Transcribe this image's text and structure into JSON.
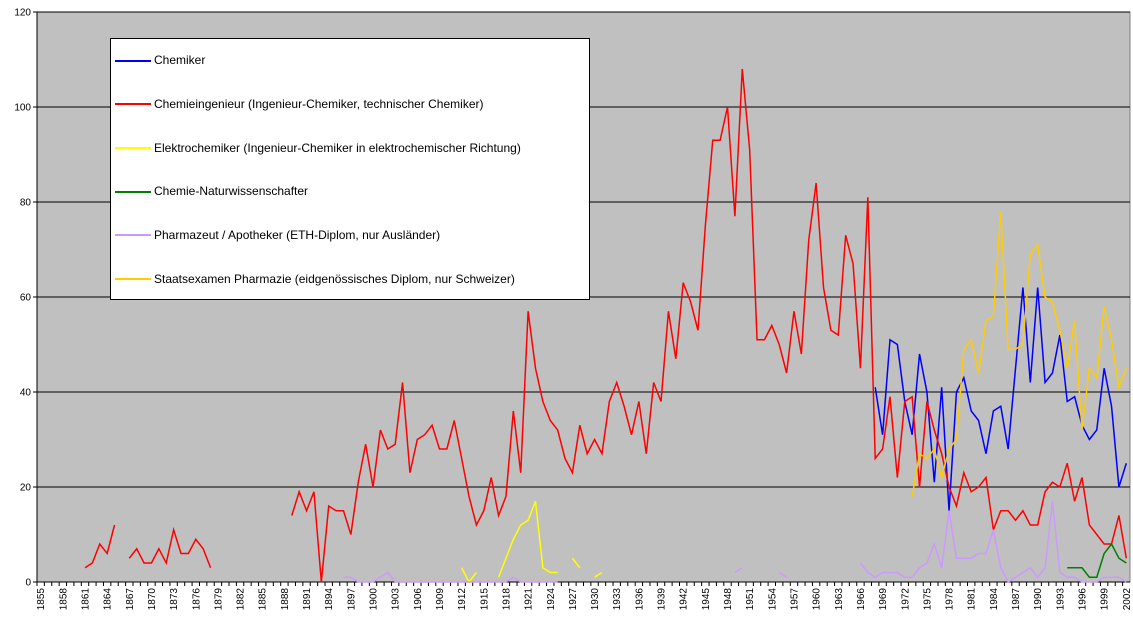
{
  "chart_data": {
    "type": "line",
    "categories": [
      "1855",
      null,
      null,
      "1858",
      null,
      null,
      "1861",
      null,
      null,
      "1864",
      null,
      null,
      "1867",
      null,
      null,
      "1870",
      null,
      null,
      "1873",
      null,
      null,
      "1876",
      null,
      null,
      "1879",
      null,
      null,
      "1882",
      null,
      null,
      "1885",
      null,
      null,
      "1888",
      null,
      null,
      "1891",
      null,
      null,
      "1894",
      null,
      null,
      "1897",
      null,
      null,
      "1900",
      null,
      null,
      "1903",
      null,
      null,
      "1906",
      null,
      null,
      "1909",
      null,
      null,
      "1912",
      null,
      null,
      "1915",
      null,
      null,
      "1918",
      null,
      null,
      "1921",
      null,
      null,
      "1924",
      null,
      null,
      "1927",
      null,
      null,
      "1930",
      null,
      null,
      "1933",
      null,
      null,
      "1936",
      null,
      null,
      "1939",
      null,
      null,
      "1942",
      null,
      null,
      "1945",
      null,
      null,
      "1948",
      null,
      null,
      "1951",
      null,
      null,
      "1954",
      null,
      null,
      "1957",
      null,
      null,
      "1960",
      null,
      null,
      "1963",
      null,
      null,
      "1966",
      null,
      null,
      "1969",
      null,
      null,
      "1972",
      null,
      null,
      "1975",
      null,
      null,
      "1978",
      null,
      null,
      "1981",
      null,
      null,
      "1984",
      null,
      null,
      "1987",
      null,
      null,
      "1990",
      null,
      null,
      "1993",
      null,
      null,
      "1996",
      null,
      null,
      "1999",
      null,
      null,
      "2002"
    ],
    "series": [
      {
        "name": "Chemiker",
        "color": "#0000ff",
        "values": [
          null,
          null,
          null,
          null,
          null,
          null,
          null,
          null,
          null,
          null,
          null,
          null,
          null,
          null,
          null,
          null,
          null,
          null,
          null,
          null,
          null,
          null,
          null,
          null,
          null,
          null,
          null,
          null,
          null,
          null,
          null,
          null,
          null,
          null,
          null,
          null,
          null,
          null,
          null,
          null,
          null,
          null,
          null,
          null,
          null,
          null,
          null,
          null,
          null,
          null,
          null,
          null,
          null,
          null,
          null,
          null,
          null,
          null,
          null,
          null,
          null,
          null,
          null,
          null,
          null,
          null,
          null,
          null,
          null,
          null,
          null,
          null,
          null,
          null,
          null,
          null,
          null,
          null,
          null,
          null,
          null,
          null,
          null,
          null,
          null,
          null,
          null,
          null,
          null,
          null,
          null,
          null,
          null,
          null,
          null,
          null,
          null,
          null,
          null,
          null,
          null,
          null,
          null,
          null,
          null,
          null,
          null,
          null,
          null,
          null,
          null,
          null,
          null,
          41,
          31,
          51,
          50,
          38,
          31,
          48,
          40,
          21,
          41,
          15,
          40,
          43,
          36,
          34,
          27,
          36,
          37,
          28,
          45,
          62,
          42,
          62,
          42,
          44,
          52,
          38,
          39,
          33,
          30,
          32,
          45,
          37,
          20,
          25
        ]
      },
      {
        "name": "Chemieingenieur (Ingenieur-Chemiker, technischer Chemiker)",
        "color": "#ff0000",
        "values": [
          null,
          null,
          null,
          null,
          null,
          null,
          3,
          4,
          8,
          6,
          12,
          null,
          5,
          7,
          4,
          4,
          7,
          4,
          11,
          6,
          6,
          9,
          7,
          3,
          null,
          null,
          null,
          null,
          null,
          null,
          null,
          null,
          null,
          null,
          14,
          19,
          15,
          19,
          0,
          16,
          15,
          15,
          10,
          21,
          29,
          20,
          32,
          28,
          29,
          42,
          23,
          30,
          31,
          33,
          28,
          28,
          34,
          26,
          18,
          12,
          15,
          22,
          14,
          18,
          36,
          23,
          57,
          45,
          38,
          34,
          32,
          26,
          23,
          33,
          27,
          30,
          27,
          38,
          42,
          37,
          31,
          38,
          27,
          42,
          38,
          57,
          47,
          63,
          59,
          53,
          75,
          93,
          93,
          100,
          77,
          108,
          91,
          51,
          51,
          54,
          50,
          44,
          57,
          48,
          72,
          84,
          62,
          53,
          52,
          73,
          67,
          45,
          81,
          26,
          28,
          39,
          22,
          38,
          39,
          20,
          38,
          32,
          27,
          20,
          16,
          23,
          19,
          20,
          22,
          11,
          15,
          15,
          13,
          15,
          12,
          12,
          19,
          21,
          20,
          25,
          17,
          22,
          12,
          10,
          8,
          8,
          14,
          5
        ]
      },
      {
        "name": "Elektrochemiker (Ingenieur-Chemiker in elektrochemischer Richtung)",
        "color": "#ffff00",
        "values": [
          null,
          null,
          null,
          null,
          null,
          null,
          null,
          null,
          null,
          null,
          null,
          null,
          null,
          null,
          null,
          null,
          null,
          null,
          null,
          null,
          null,
          null,
          null,
          null,
          null,
          null,
          null,
          null,
          null,
          null,
          null,
          null,
          null,
          null,
          null,
          null,
          null,
          null,
          null,
          null,
          null,
          null,
          null,
          null,
          null,
          null,
          null,
          null,
          null,
          null,
          null,
          null,
          null,
          null,
          null,
          null,
          null,
          3,
          0,
          2,
          null,
          null,
          1,
          5,
          9,
          12,
          13,
          17,
          3,
          2,
          2,
          null,
          5,
          3,
          null,
          1,
          2,
          null,
          null,
          null,
          null,
          null,
          null,
          null,
          null,
          null,
          null,
          null,
          null,
          null,
          null,
          null,
          null,
          null,
          null,
          null,
          null,
          null,
          null,
          null,
          null,
          null,
          null,
          null,
          null,
          null,
          null,
          null,
          null,
          null,
          null,
          null,
          null,
          null,
          null,
          null,
          null,
          null,
          null,
          null,
          null,
          null,
          null,
          null,
          null,
          null,
          null,
          null,
          null,
          null,
          null,
          null,
          null,
          null,
          null,
          null,
          null,
          null,
          null,
          null,
          null,
          null,
          null,
          null,
          null,
          null,
          null,
          null
        ]
      },
      {
        "name": "Chemie-Naturwissenschafter",
        "color": "#008000",
        "values": [
          null,
          null,
          null,
          null,
          null,
          null,
          null,
          null,
          null,
          null,
          null,
          null,
          null,
          null,
          null,
          null,
          null,
          null,
          null,
          null,
          null,
          null,
          null,
          null,
          null,
          null,
          null,
          null,
          null,
          null,
          null,
          null,
          null,
          null,
          null,
          null,
          null,
          null,
          null,
          null,
          null,
          null,
          null,
          null,
          null,
          null,
          null,
          null,
          null,
          null,
          null,
          null,
          null,
          null,
          null,
          null,
          null,
          null,
          null,
          null,
          null,
          null,
          null,
          null,
          null,
          null,
          null,
          null,
          null,
          null,
          null,
          null,
          null,
          null,
          null,
          null,
          null,
          null,
          null,
          null,
          null,
          null,
          null,
          null,
          null,
          null,
          null,
          null,
          null,
          null,
          null,
          null,
          null,
          null,
          null,
          null,
          null,
          null,
          null,
          null,
          null,
          null,
          null,
          null,
          null,
          null,
          null,
          null,
          null,
          null,
          null,
          null,
          null,
          null,
          null,
          null,
          null,
          null,
          null,
          null,
          null,
          null,
          null,
          null,
          null,
          null,
          null,
          null,
          null,
          null,
          null,
          null,
          null,
          null,
          null,
          null,
          null,
          null,
          null,
          3,
          3,
          3,
          1,
          1,
          6,
          8,
          5,
          4
        ]
      },
      {
        "name": "Pharmazeut / Apotheker (ETH-Diplom, nur Ausländer)",
        "color": "#cc99ff",
        "values": [
          null,
          null,
          null,
          null,
          null,
          null,
          null,
          null,
          null,
          null,
          null,
          null,
          null,
          null,
          null,
          null,
          null,
          null,
          null,
          null,
          null,
          null,
          null,
          null,
          null,
          null,
          null,
          null,
          null,
          null,
          null,
          null,
          null,
          null,
          null,
          null,
          null,
          null,
          null,
          null,
          null,
          1,
          1,
          0,
          0,
          0,
          1,
          2,
          0,
          0,
          0,
          0,
          0,
          0,
          0,
          0,
          0,
          0,
          0,
          0,
          0,
          0,
          0,
          0,
          1,
          0,
          0,
          0,
          0,
          0,
          0,
          null,
          null,
          null,
          null,
          null,
          null,
          null,
          null,
          null,
          null,
          null,
          null,
          null,
          null,
          null,
          null,
          null,
          null,
          null,
          null,
          null,
          null,
          null,
          2,
          3,
          null,
          null,
          null,
          null,
          2,
          1,
          null,
          null,
          null,
          null,
          null,
          null,
          null,
          null,
          null,
          4,
          2,
          1,
          2,
          2,
          2,
          1,
          1,
          3,
          4,
          8,
          3,
          15,
          5,
          5,
          5,
          6,
          6,
          11,
          3,
          0,
          1,
          2,
          3,
          1,
          3,
          17,
          2,
          1,
          1,
          0,
          0,
          0,
          1,
          1,
          1,
          0
        ]
      },
      {
        "name": "Staatsexamen Pharmazie (eidgenössisches Diplom, nur Schweizer)",
        "color": "#ffcc00",
        "values": [
          null,
          null,
          null,
          null,
          null,
          null,
          null,
          null,
          null,
          null,
          null,
          null,
          null,
          null,
          null,
          null,
          null,
          null,
          null,
          null,
          null,
          null,
          null,
          null,
          null,
          null,
          null,
          null,
          null,
          null,
          null,
          null,
          null,
          null,
          null,
          null,
          null,
          null,
          null,
          null,
          null,
          null,
          null,
          null,
          null,
          null,
          null,
          null,
          null,
          null,
          null,
          null,
          null,
          null,
          null,
          null,
          null,
          null,
          null,
          null,
          null,
          null,
          null,
          null,
          null,
          null,
          null,
          null,
          null,
          null,
          null,
          null,
          null,
          null,
          null,
          null,
          null,
          null,
          null,
          null,
          null,
          null,
          null,
          null,
          null,
          null,
          null,
          null,
          null,
          null,
          null,
          null,
          null,
          null,
          null,
          null,
          null,
          null,
          null,
          null,
          null,
          null,
          null,
          null,
          null,
          null,
          null,
          null,
          null,
          null,
          null,
          null,
          null,
          null,
          null,
          null,
          null,
          null,
          18,
          27,
          26,
          28,
          22,
          28,
          30,
          49,
          51,
          44,
          55,
          56,
          78,
          49,
          49,
          50,
          69,
          71,
          60,
          59,
          53,
          45,
          55,
          32,
          45,
          43,
          58,
          51,
          41,
          45
        ]
      }
    ],
    "ylim": [
      0,
      120
    ],
    "yticks": [
      0,
      20,
      40,
      60,
      80,
      100,
      120
    ],
    "grid": true,
    "legend": "upper left"
  }
}
